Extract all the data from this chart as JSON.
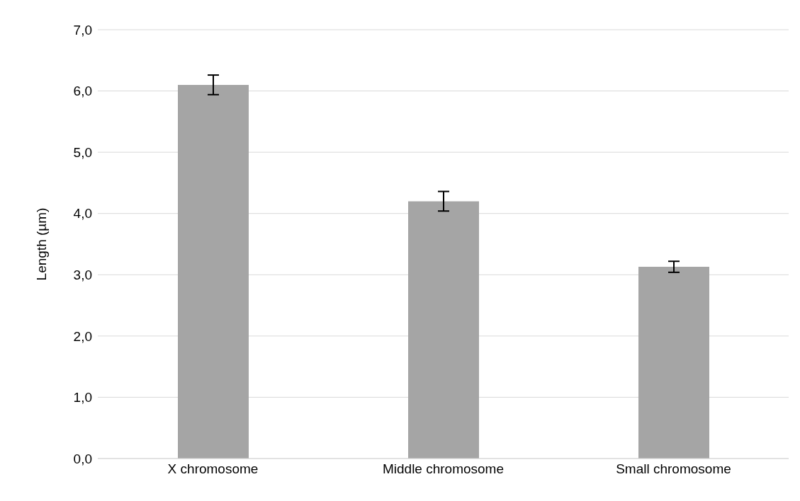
{
  "chart_data": {
    "type": "bar",
    "ylabel": "Length (µm)",
    "categories": [
      "X chromosome",
      "Middle chromosome",
      "Small chromosome"
    ],
    "values": [
      6.1,
      4.2,
      3.13
    ],
    "color": "#a5a5a5",
    "errors": [
      0.16,
      0.16,
      0.09
    ],
    "ylim": [
      0,
      7
    ],
    "yticks": [
      {
        "value": 0,
        "label": "0,0"
      },
      {
        "value": 1,
        "label": "1,0"
      },
      {
        "value": 2,
        "label": "2,0"
      },
      {
        "value": 3,
        "label": "3,0"
      },
      {
        "value": 4,
        "label": "4,0"
      },
      {
        "value": 5,
        "label": "5,0"
      },
      {
        "value": 6,
        "label": "6,0"
      },
      {
        "value": 7,
        "label": "7,0"
      }
    ],
    "grid": "y"
  }
}
